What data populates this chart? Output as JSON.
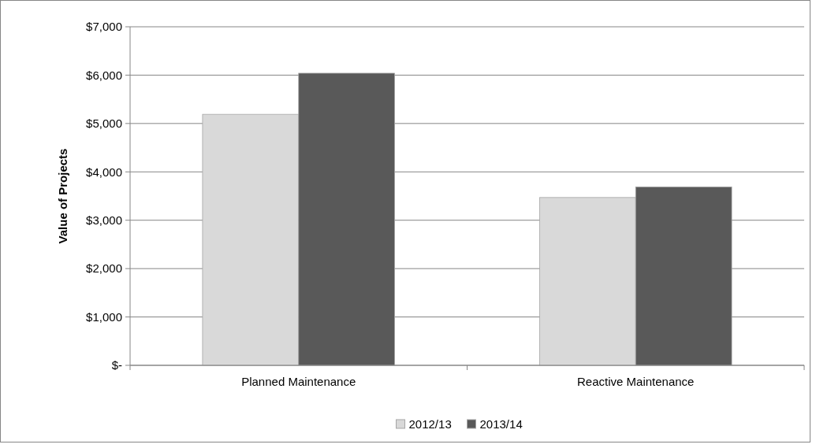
{
  "chart_data": {
    "type": "bar",
    "ylabel": "Value of Projects",
    "categories": [
      "Planned Maintenance",
      "Reactive Maintenance"
    ],
    "series": [
      {
        "name": "2012/13",
        "color": "#d9d9d9",
        "values": [
          5190,
          3470
        ]
      },
      {
        "name": "2013/14",
        "color": "#595959",
        "values": [
          6040,
          3690
        ]
      }
    ],
    "ylim": [
      0,
      7000
    ],
    "yticks": [
      {
        "value": 0,
        "label": "$-"
      },
      {
        "value": 1000,
        "label": "$1,000"
      },
      {
        "value": 2000,
        "label": "$2,000"
      },
      {
        "value": 3000,
        "label": "$3,000"
      },
      {
        "value": 4000,
        "label": "$4,000"
      },
      {
        "value": 5000,
        "label": "$5,000"
      },
      {
        "value": 6000,
        "label": "$6,000"
      },
      {
        "value": 7000,
        "label": "$7,000"
      }
    ],
    "grid": "y",
    "legend": "bottom"
  }
}
